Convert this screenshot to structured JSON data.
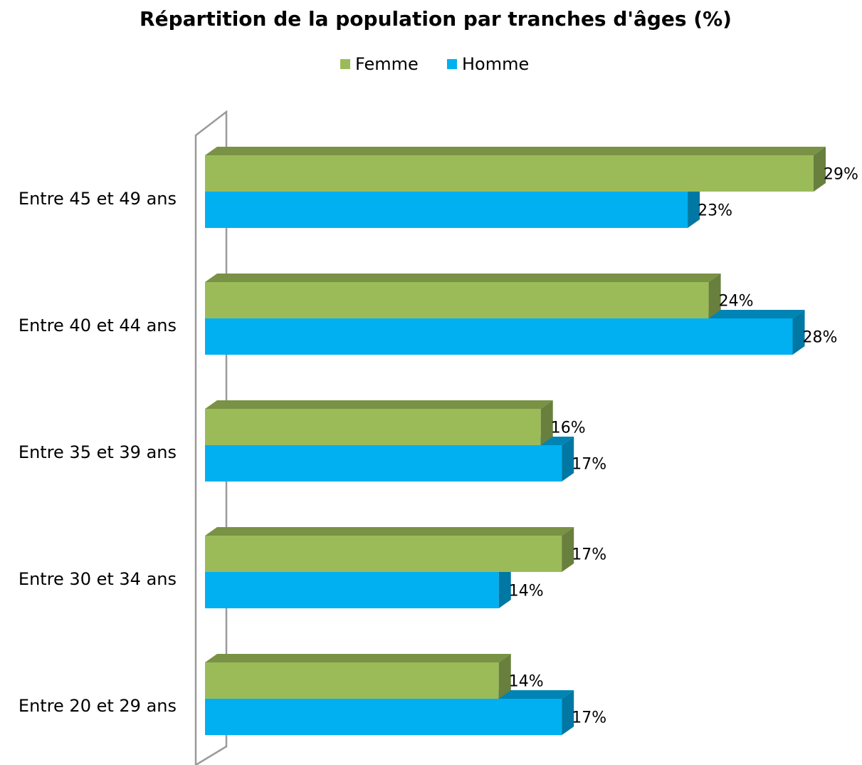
{
  "chart_data": {
    "type": "bar3d_horizontal",
    "title": "Répartition de la population par tranches d'âges (%)",
    "categories": [
      "Entre 45 et 49 ans",
      "Entre 40 et 44 ans",
      "Entre 35 et 39 ans",
      "Entre 30 et 34 ans",
      "Entre 20 et 29 ans"
    ],
    "series": [
      {
        "name": "Femme",
        "color": "#9bbb59",
        "values": [
          29,
          24,
          16,
          17,
          14
        ],
        "value_labels": [
          "29%",
          "24%",
          "16%",
          "17%",
          "14%"
        ]
      },
      {
        "name": "Homme",
        "color": "#00b0f0",
        "values": [
          23,
          28,
          17,
          14,
          17
        ],
        "value_labels": [
          "23%",
          "28%",
          "17%",
          "14%",
          "17%"
        ]
      }
    ],
    "legend": "top"
  }
}
